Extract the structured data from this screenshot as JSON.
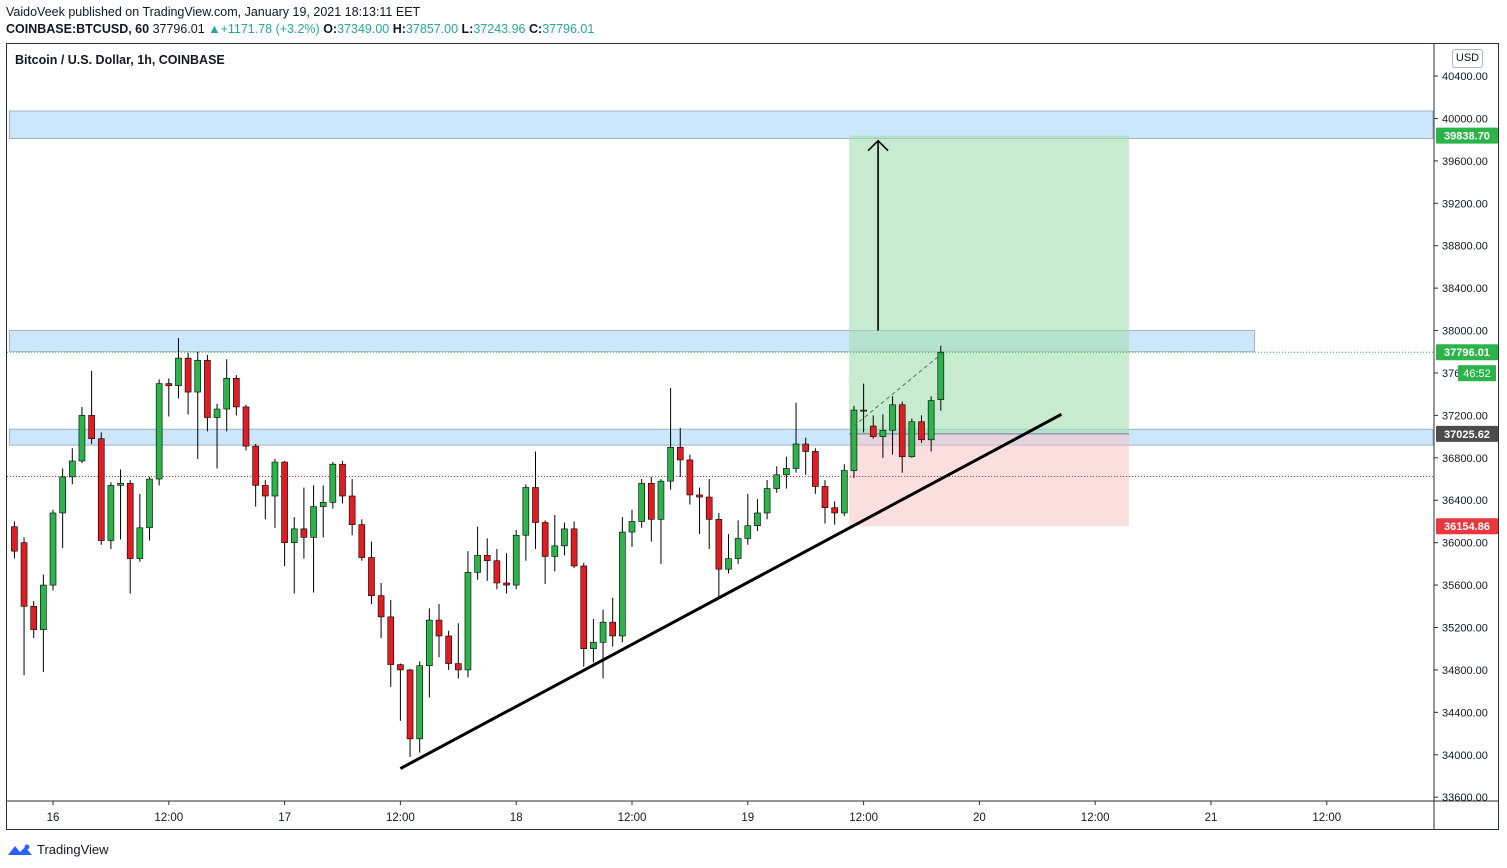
{
  "header": {
    "published_line": "VaidoVeek published on TradingView.com, January 19, 2021 18:13:11 EET",
    "symbol_label": "COINBASE:BTCUSD, 60",
    "last_price": "37796.01",
    "change": "+1171.78 (+3.2%)",
    "open_label": "O:",
    "open_value": "37349.00",
    "high_label": "H:",
    "high_value": "37857.00",
    "low_label": "L:",
    "low_value": "37243.96",
    "close_label": "C:",
    "close_value": "37796.01",
    "up_icon": "up-triangle-icon"
  },
  "chart_title": "Bitcoin / U.S. Dollar, 1h, COINBASE",
  "currency_button": "USD",
  "footer": {
    "brand": "TradingView",
    "logo_icon": "tradingview-logo-icon"
  },
  "colors": {
    "up": "#26a69a",
    "candle_up": "#2cb34a",
    "candle_down": "#e01d22",
    "zone": "#bbdefb",
    "profit": "#a5dfb2",
    "loss": "#f8c4c2",
    "trendline": "#000000"
  },
  "chart_data": {
    "type": "candlestick",
    "interval": "1h",
    "y_axis": {
      "ticks": [
        40400,
        40000,
        39600,
        39200,
        38800,
        38400,
        38000,
        37600,
        37200,
        36800,
        36400,
        36000,
        35600,
        35200,
        34800,
        34400,
        34000,
        33600
      ],
      "tick_labels": [
        "40400.00",
        "40000.00",
        "39600.00",
        "39200.00",
        "38800.00",
        "38400.00",
        "38000.00",
        "37600.00",
        "37200.00",
        "36800.00",
        "36400.00",
        "36000.00",
        "35600.00",
        "35200.00",
        "34800.00",
        "34400.00",
        "34000.00",
        "33600.00"
      ],
      "range": [
        33600,
        40700
      ]
    },
    "x_axis": {
      "ticks": [
        {
          "label": "16",
          "hour": 0
        },
        {
          "label": "12:00",
          "hour": 12
        },
        {
          "label": "17",
          "hour": 24
        },
        {
          "label": "12:00",
          "hour": 36
        },
        {
          "label": "18",
          "hour": 48
        },
        {
          "label": "12:00",
          "hour": 60
        },
        {
          "label": "19",
          "hour": 72
        },
        {
          "label": "12:00",
          "hour": 84
        },
        {
          "label": "20",
          "hour": 96
        },
        {
          "label": "12:00",
          "hour": 108
        },
        {
          "label": "21",
          "hour": 120
        },
        {
          "label": "12:00",
          "hour": 132
        }
      ],
      "range_hours": [
        -4.5,
        143
      ]
    },
    "price_labels": [
      {
        "text": "39838.70",
        "value": 39838.7,
        "color": "#2cb34a"
      },
      {
        "text": "37796.01",
        "value": 37796.01,
        "color": "#2cb34a"
      },
      {
        "text": "37025.62",
        "value": 37025.62,
        "color": "#4c4c4c"
      },
      {
        "text": "36154.86",
        "value": 36154.86,
        "color": "#e8383d"
      }
    ],
    "countdown_label": "46:52",
    "zones": [
      {
        "low": 39810,
        "high": 40070,
        "start_hour": -4.5,
        "end_hour": 143
      },
      {
        "low": 37800,
        "high": 38000,
        "start_hour": -4.5,
        "end_hour": 124.5
      },
      {
        "low": 36920,
        "high": 37070,
        "start_hour": -4.5,
        "end_hour": 143
      }
    ],
    "long_position": {
      "entry": 37025.62,
      "target": 39838.7,
      "stop": 36154.86,
      "start_hour": 82.5,
      "end_hour": 111.5
    },
    "trendline": {
      "x1_hour": 36,
      "y1": 33870,
      "x2_hour": 104.5,
      "y2": 37210
    },
    "target_arrow": {
      "x_hour": 85.5,
      "from": 38000,
      "to": 39790
    },
    "projection_line": {
      "x1_hour": 83,
      "y1": 37100,
      "x2_hour": 92.2,
      "y2": 37790
    },
    "current_price_line": 37796.01,
    "reference_price_line": 36624,
    "candles": [
      {
        "h": -4,
        "o": 36150,
        "c": 35920,
        "hi": 36200,
        "lo": 35850
      },
      {
        "h": -3,
        "o": 36000,
        "c": 35400,
        "hi": 36050,
        "lo": 34750
      },
      {
        "h": -2,
        "o": 35400,
        "c": 35180,
        "hi": 35450,
        "lo": 35100
      },
      {
        "h": -1,
        "o": 35180,
        "c": 35600,
        "hi": 35700,
        "lo": 34780
      },
      {
        "h": 0,
        "o": 35600,
        "c": 36280,
        "hi": 36310,
        "lo": 35550
      },
      {
        "h": 1,
        "o": 36280,
        "c": 36620,
        "hi": 36700,
        "lo": 35950
      },
      {
        "h": 2,
        "o": 36620,
        "c": 36770,
        "hi": 36890,
        "lo": 36550
      },
      {
        "h": 3,
        "o": 36770,
        "c": 37200,
        "hi": 37280,
        "lo": 36750
      },
      {
        "h": 4,
        "o": 37200,
        "c": 36980,
        "hi": 37620,
        "lo": 36930
      },
      {
        "h": 5,
        "o": 36980,
        "c": 36020,
        "hi": 37040,
        "lo": 35980
      },
      {
        "h": 6,
        "o": 36020,
        "c": 36540,
        "hi": 36570,
        "lo": 35940
      },
      {
        "h": 7,
        "o": 36540,
        "c": 36560,
        "hi": 36690,
        "lo": 36030
      },
      {
        "h": 8,
        "o": 36560,
        "c": 35850,
        "hi": 36590,
        "lo": 35520
      },
      {
        "h": 9,
        "o": 35850,
        "c": 36140,
        "hi": 36460,
        "lo": 35820
      },
      {
        "h": 10,
        "o": 36140,
        "c": 36600,
        "hi": 36620,
        "lo": 36020
      },
      {
        "h": 11,
        "o": 36600,
        "c": 37500,
        "hi": 37540,
        "lo": 36540
      },
      {
        "h": 12,
        "o": 37500,
        "c": 37480,
        "hi": 37550,
        "lo": 37190
      },
      {
        "h": 13,
        "o": 37480,
        "c": 37740,
        "hi": 37930,
        "lo": 37360
      },
      {
        "h": 14,
        "o": 37740,
        "c": 37420,
        "hi": 37790,
        "lo": 37210
      },
      {
        "h": 15,
        "o": 37420,
        "c": 37720,
        "hi": 37800,
        "lo": 36790
      },
      {
        "h": 16,
        "o": 37720,
        "c": 37180,
        "hi": 37770,
        "lo": 37050
      },
      {
        "h": 17,
        "o": 37180,
        "c": 37260,
        "hi": 37310,
        "lo": 36700
      },
      {
        "h": 18,
        "o": 37260,
        "c": 37550,
        "hi": 37730,
        "lo": 37050
      },
      {
        "h": 19,
        "o": 37550,
        "c": 37280,
        "hi": 37580,
        "lo": 37200
      },
      {
        "h": 20,
        "o": 37280,
        "c": 36910,
        "hi": 37300,
        "lo": 36870
      },
      {
        "h": 21,
        "o": 36910,
        "c": 36540,
        "hi": 36930,
        "lo": 36340
      },
      {
        "h": 22,
        "o": 36540,
        "c": 36440,
        "hi": 36590,
        "lo": 36220
      },
      {
        "h": 23,
        "o": 36440,
        "c": 36760,
        "hi": 36790,
        "lo": 36140
      },
      {
        "h": 24,
        "o": 36760,
        "c": 36000,
        "hi": 36770,
        "lo": 35780
      },
      {
        "h": 25,
        "o": 36000,
        "c": 36130,
        "hi": 36240,
        "lo": 35520
      },
      {
        "h": 26,
        "o": 36130,
        "c": 36050,
        "hi": 36520,
        "lo": 35850
      },
      {
        "h": 27,
        "o": 36050,
        "c": 36340,
        "hi": 36540,
        "lo": 35530
      },
      {
        "h": 28,
        "o": 36340,
        "c": 36380,
        "hi": 36540,
        "lo": 36050
      },
      {
        "h": 29,
        "o": 36380,
        "c": 36740,
        "hi": 36760,
        "lo": 36320
      },
      {
        "h": 30,
        "o": 36740,
        "c": 36440,
        "hi": 36770,
        "lo": 36370
      },
      {
        "h": 31,
        "o": 36440,
        "c": 36170,
        "hi": 36600,
        "lo": 36070
      },
      {
        "h": 32,
        "o": 36170,
        "c": 35860,
        "hi": 36220,
        "lo": 35830
      },
      {
        "h": 33,
        "o": 35860,
        "c": 35500,
        "hi": 36010,
        "lo": 35420
      },
      {
        "h": 34,
        "o": 35500,
        "c": 35300,
        "hi": 35620,
        "lo": 35100
      },
      {
        "h": 35,
        "o": 35300,
        "c": 34850,
        "hi": 35460,
        "lo": 34640
      },
      {
        "h": 36,
        "o": 34850,
        "c": 34800,
        "hi": 34860,
        "lo": 34320
      },
      {
        "h": 37,
        "o": 34800,
        "c": 34150,
        "hi": 34810,
        "lo": 33980
      },
      {
        "h": 38,
        "o": 34150,
        "c": 34840,
        "hi": 34880,
        "lo": 34020
      },
      {
        "h": 39,
        "o": 34840,
        "c": 35270,
        "hi": 35380,
        "lo": 34540
      },
      {
        "h": 40,
        "o": 35270,
        "c": 35120,
        "hi": 35420,
        "lo": 34920
      },
      {
        "h": 41,
        "o": 35120,
        "c": 34860,
        "hi": 35170,
        "lo": 34800
      },
      {
        "h": 42,
        "o": 34860,
        "c": 34800,
        "hi": 35240,
        "lo": 34720
      },
      {
        "h": 43,
        "o": 34800,
        "c": 35720,
        "hi": 35920,
        "lo": 34730
      },
      {
        "h": 44,
        "o": 35720,
        "c": 35880,
        "hi": 36150,
        "lo": 35650
      },
      {
        "h": 45,
        "o": 35880,
        "c": 35830,
        "hi": 36040,
        "lo": 35640
      },
      {
        "h": 46,
        "o": 35830,
        "c": 35620,
        "hi": 35940,
        "lo": 35560
      },
      {
        "h": 47,
        "o": 35620,
        "c": 35600,
        "hi": 35900,
        "lo": 35520
      },
      {
        "h": 48,
        "o": 35600,
        "c": 36070,
        "hi": 36120,
        "lo": 35560
      },
      {
        "h": 49,
        "o": 36070,
        "c": 36520,
        "hi": 36550,
        "lo": 35830
      },
      {
        "h": 50,
        "o": 36520,
        "c": 36190,
        "hi": 36860,
        "lo": 35940
      },
      {
        "h": 51,
        "o": 36190,
        "c": 35870,
        "hi": 36210,
        "lo": 35610
      },
      {
        "h": 52,
        "o": 35870,
        "c": 35970,
        "hi": 36260,
        "lo": 35730
      },
      {
        "h": 53,
        "o": 35970,
        "c": 36130,
        "hi": 36190,
        "lo": 35880
      },
      {
        "h": 54,
        "o": 36130,
        "c": 35780,
        "hi": 36200,
        "lo": 35760
      },
      {
        "h": 55,
        "o": 35780,
        "c": 35000,
        "hi": 35810,
        "lo": 34830
      },
      {
        "h": 56,
        "o": 35000,
        "c": 35060,
        "hi": 35280,
        "lo": 34870
      },
      {
        "h": 57,
        "o": 35060,
        "c": 35250,
        "hi": 35370,
        "lo": 34720
      },
      {
        "h": 58,
        "o": 35250,
        "c": 35120,
        "hi": 35480,
        "lo": 35020
      },
      {
        "h": 59,
        "o": 35120,
        "c": 36100,
        "hi": 36240,
        "lo": 35060
      },
      {
        "h": 60,
        "o": 36100,
        "c": 36200,
        "hi": 36310,
        "lo": 35960
      },
      {
        "h": 61,
        "o": 36200,
        "c": 36560,
        "hi": 36600,
        "lo": 36140
      },
      {
        "h": 62,
        "o": 36560,
        "c": 36220,
        "hi": 36620,
        "lo": 36010
      },
      {
        "h": 63,
        "o": 36220,
        "c": 36580,
        "hi": 36600,
        "lo": 35800
      },
      {
        "h": 64,
        "o": 36580,
        "c": 36900,
        "hi": 37460,
        "lo": 36500
      },
      {
        "h": 65,
        "o": 36900,
        "c": 36780,
        "hi": 37080,
        "lo": 36620
      },
      {
        "h": 66,
        "o": 36780,
        "c": 36450,
        "hi": 36830,
        "lo": 36360
      },
      {
        "h": 67,
        "o": 36450,
        "c": 36430,
        "hi": 36520,
        "lo": 36080
      },
      {
        "h": 68,
        "o": 36430,
        "c": 36220,
        "hi": 36600,
        "lo": 35940
      },
      {
        "h": 69,
        "o": 36220,
        "c": 35750,
        "hi": 36280,
        "lo": 35480
      },
      {
        "h": 70,
        "o": 35750,
        "c": 35850,
        "hi": 36080,
        "lo": 35710
      },
      {
        "h": 71,
        "o": 35850,
        "c": 36040,
        "hi": 36210,
        "lo": 35800
      },
      {
        "h": 72,
        "o": 36040,
        "c": 36160,
        "hi": 36460,
        "lo": 35980
      },
      {
        "h": 73,
        "o": 36160,
        "c": 36280,
        "hi": 36410,
        "lo": 36110
      },
      {
        "h": 74,
        "o": 36280,
        "c": 36510,
        "hi": 36590,
        "lo": 36220
      },
      {
        "h": 75,
        "o": 36510,
        "c": 36640,
        "hi": 36720,
        "lo": 36470
      },
      {
        "h": 76,
        "o": 36640,
        "c": 36700,
        "hi": 36810,
        "lo": 36510
      },
      {
        "h": 77,
        "o": 36700,
        "c": 36930,
        "hi": 37320,
        "lo": 36660
      },
      {
        "h": 78,
        "o": 36930,
        "c": 36860,
        "hi": 36990,
        "lo": 36640
      },
      {
        "h": 79,
        "o": 36860,
        "c": 36530,
        "hi": 36890,
        "lo": 36460
      },
      {
        "h": 80,
        "o": 36530,
        "c": 36330,
        "hi": 36590,
        "lo": 36180
      },
      {
        "h": 81,
        "o": 36330,
        "c": 36280,
        "hi": 36390,
        "lo": 36170
      },
      {
        "h": 82,
        "o": 36280,
        "c": 36680,
        "hi": 36740,
        "lo": 36250
      },
      {
        "h": 83,
        "o": 36680,
        "c": 37250,
        "hi": 37290,
        "lo": 36610
      },
      {
        "h": 84,
        "o": 37250,
        "c": 37240,
        "hi": 37500,
        "lo": 37040
      },
      {
        "h": 85,
        "o": 37100,
        "c": 37000,
        "hi": 37200,
        "lo": 36980
      },
      {
        "h": 86,
        "o": 37000,
        "c": 37060,
        "hi": 37210,
        "lo": 36800
      },
      {
        "h": 87,
        "o": 37060,
        "c": 37300,
        "hi": 37380,
        "lo": 36830
      },
      {
        "h": 88,
        "o": 37300,
        "c": 36810,
        "hi": 37330,
        "lo": 36660
      },
      {
        "h": 89,
        "o": 36810,
        "c": 37140,
        "hi": 37170,
        "lo": 36800
      },
      {
        "h": 90,
        "o": 37140,
        "c": 36970,
        "hi": 37200,
        "lo": 36940
      },
      {
        "h": 91,
        "o": 36970,
        "c": 37340,
        "hi": 37380,
        "lo": 36860
      },
      {
        "h": 92,
        "o": 37349,
        "c": 37796.01,
        "hi": 37857,
        "lo": 37243.96
      }
    ]
  }
}
